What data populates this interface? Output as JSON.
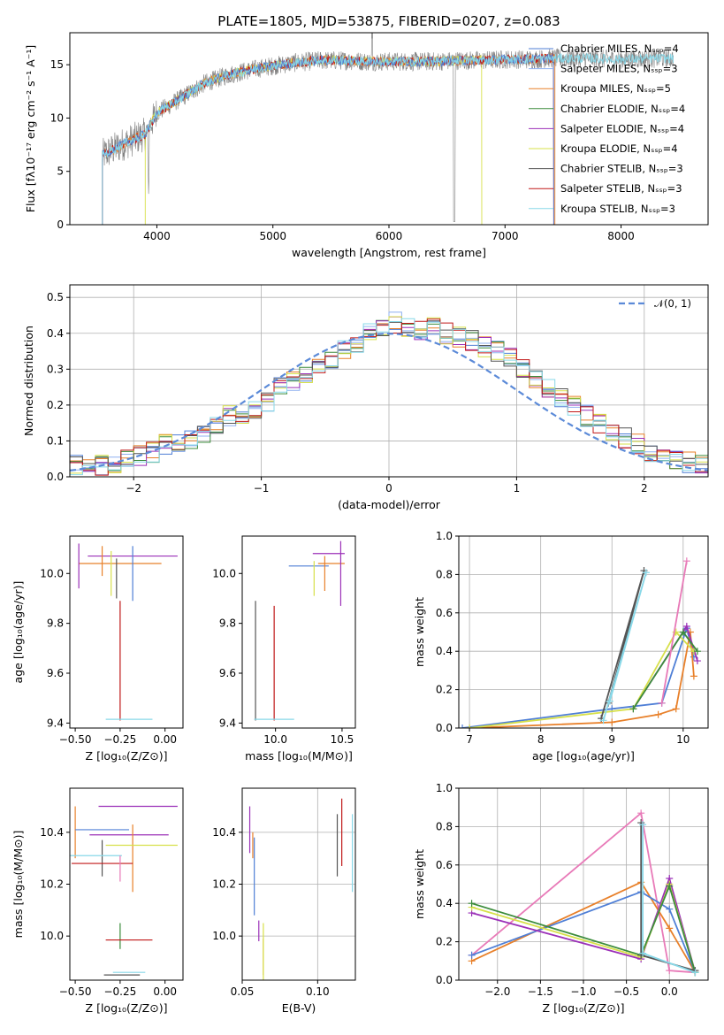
{
  "colors": {
    "chabrier_miles": "#4f7fd6",
    "salpeter_miles": "#8fb0f0",
    "kroupa_miles": "#e8802a",
    "chabrier_elodie": "#3c8c3c",
    "salpeter_elodie": "#9b30b8",
    "kroupa_elodie": "#d7e04a",
    "chabrier_stelib": "#555555",
    "salpeter_stelib": "#c01818",
    "kroupa_stelib": "#88d8e8",
    "data": "#808080",
    "normal": "#5b8ad8",
    "pink": "#e87ab8"
  },
  "chart_data": [
    {
      "id": "spectrum",
      "type": "line",
      "title": "PLATE=1805, MJD=53875, FIBERID=0207, z=0.083",
      "xlabel": "wavelength [Angstrom, rest frame]",
      "ylabel": "Flux [fλ10⁻¹⁷ erg cm⁻² s⁻¹ A⁻¹]",
      "xlim": [
        3250,
        8750
      ],
      "ylim": [
        0,
        18
      ],
      "xticks": [
        4000,
        5000,
        6000,
        7000,
        8000
      ],
      "yticks": [
        0,
        5,
        10,
        15
      ],
      "legend_position": "top-right",
      "legend": [
        "Chabrier MILES, Nₛₛₚ=4",
        "Salpeter MILES, Nₛₛₚ=3",
        "Kroupa MILES, Nₛₛₚ=5",
        "Chabrier ELODIE, Nₛₛₚ=4",
        "Salpeter ELODIE, Nₛₛₚ=4",
        "Kroupa ELODIE, Nₛₛₚ=4",
        "Chabrier STELIB, Nₛₛₚ=3",
        "Salpeter STELIB, Nₛₛₚ=3",
        "Kroupa STELIB, Nₛₛₚ=3"
      ],
      "continuum": {
        "x": [
          3530,
          3700,
          3900,
          4000,
          4200,
          4400,
          4600,
          4800,
          5000,
          5200,
          5400,
          5600,
          5800,
          6000,
          6200,
          6400,
          6600,
          6800,
          7000,
          7200,
          7400,
          7700,
          8000,
          8400
        ],
        "y": [
          6.5,
          7.5,
          8.5,
          10.5,
          11.8,
          13.2,
          14.0,
          14.5,
          14.9,
          15.2,
          15.4,
          15.4,
          15.3,
          15.3,
          15.3,
          15.3,
          15.4,
          15.4,
          15.5,
          15.5,
          15.6,
          15.6,
          15.5,
          15.6
        ]
      }
    },
    {
      "id": "residuals",
      "type": "line",
      "xlabel": "(data-model)/error",
      "ylabel": "Normed distribution",
      "xlim": [
        -2.5,
        2.5
      ],
      "ylim": [
        0,
        0.535
      ],
      "xticks": [
        -2,
        -1,
        0,
        1,
        2
      ],
      "yticks": [
        0.0,
        0.1,
        0.2,
        0.3,
        0.4,
        0.5
      ],
      "legend": [
        "𝒩(0, 1)"
      ],
      "legend_position": "top-right",
      "hist_bins": [
        -2.5,
        -2.4,
        -2.3,
        -2.2,
        -2.1,
        -2.0,
        -1.9,
        -1.8,
        -1.7,
        -1.6,
        -1.5,
        -1.4,
        -1.3,
        -1.2,
        -1.1,
        -1.0,
        -0.9,
        -0.8,
        -0.7,
        -0.6,
        -0.5,
        -0.4,
        -0.3,
        -0.2,
        -0.1,
        0.0,
        0.1,
        0.2,
        0.3,
        0.4,
        0.5,
        0.6,
        0.7,
        0.8,
        0.9,
        1.0,
        1.1,
        1.2,
        1.3,
        1.4,
        1.5,
        1.6,
        1.7,
        1.8,
        1.9,
        2.0,
        2.1,
        2.2,
        2.3,
        2.4
      ],
      "hist_values": [
        0.03,
        0.03,
        0.03,
        0.04,
        0.05,
        0.06,
        0.07,
        0.09,
        0.1,
        0.1,
        0.12,
        0.14,
        0.17,
        0.16,
        0.18,
        0.21,
        0.25,
        0.27,
        0.29,
        0.31,
        0.33,
        0.35,
        0.37,
        0.4,
        0.41,
        0.43,
        0.42,
        0.41,
        0.42,
        0.4,
        0.39,
        0.38,
        0.36,
        0.35,
        0.33,
        0.3,
        0.27,
        0.25,
        0.22,
        0.2,
        0.17,
        0.15,
        0.13,
        0.11,
        0.09,
        0.07,
        0.06,
        0.05,
        0.04,
        0.03
      ]
    },
    {
      "id": "age_vs_Z",
      "type": "scatter",
      "xlabel": "Z [log₁₀(Z/Z⊙)]",
      "ylabel": "age  [log₁₀(age/yr)]",
      "xlim": [
        -0.53,
        0.1
      ],
      "ylim": [
        9.38,
        10.15
      ],
      "xticks": [
        -0.5,
        -0.25,
        0.0
      ],
      "xticklabels": [
        "−0.50",
        "−0.25",
        "0.00"
      ],
      "yticks": [
        9.4,
        9.6,
        9.8,
        10.0
      ],
      "errorbars": [
        {
          "x": -0.18,
          "y": 10.07,
          "xerr": 0.25,
          "yerr": 0.0
        },
        {
          "x": -0.25,
          "y": 10.04,
          "xerr": 0.23,
          "yerr": 0.0
        },
        {
          "x": -0.18,
          "y": 10.0,
          "xerr": 0.0,
          "yerr": 0.11
        },
        {
          "x": -0.48,
          "y": 10.03,
          "xerr": 0.0,
          "yerr": 0.09
        },
        {
          "x": -0.35,
          "y": 10.05,
          "xerr": 0.0,
          "yerr": 0.06
        },
        {
          "x": -0.3,
          "y": 10.0,
          "xerr": 0.0,
          "yerr": 0.09
        },
        {
          "x": -0.27,
          "y": 9.98,
          "xerr": 0.0,
          "yerr": 0.08
        },
        {
          "x": -0.25,
          "y": 9.65,
          "xerr": 0.0,
          "yerr": 0.24
        },
        {
          "x": -0.2,
          "y": 9.415,
          "xerr": 0.13,
          "yerr": 0.0
        }
      ]
    },
    {
      "id": "age_vs_mass",
      "type": "scatter",
      "xlabel": "mass [log₁₀(M/M⊙)]",
      "xlim": [
        9.75,
        10.6
      ],
      "ylim": [
        9.38,
        10.15
      ],
      "xticks": [
        10.0,
        10.5
      ],
      "xticklabels": [
        "10.0",
        "10.5"
      ],
      "yticks": [
        9.4,
        9.6,
        9.8,
        10.0
      ],
      "errorbars": [
        {
          "x": 10.4,
          "y": 10.08,
          "xerr": 0.12,
          "yerr": 0.0
        },
        {
          "x": 10.42,
          "y": 10.04,
          "xerr": 0.1,
          "yerr": 0.0
        },
        {
          "x": 10.25,
          "y": 10.03,
          "xerr": 0.15,
          "yerr": 0.0
        },
        {
          "x": 10.49,
          "y": 10.0,
          "xerr": 0.0,
          "yerr": 0.13
        },
        {
          "x": 10.37,
          "y": 10.0,
          "xerr": 0.0,
          "yerr": 0.07
        },
        {
          "x": 10.29,
          "y": 9.98,
          "xerr": 0.0,
          "yerr": 0.07
        },
        {
          "x": 9.85,
          "y": 9.65,
          "xerr": 0.0,
          "yerr": 0.24
        },
        {
          "x": 9.99,
          "y": 9.64,
          "xerr": 0.0,
          "yerr": 0.23
        },
        {
          "x": 9.99,
          "y": 9.415,
          "xerr": 0.15,
          "yerr": 0.0
        }
      ]
    },
    {
      "id": "weight_vs_age",
      "type": "line",
      "xlabel": "age  [log₁₀(age/yr)]",
      "ylabel": "mass weight",
      "xlim": [
        6.85,
        10.35
      ],
      "ylim": [
        0,
        1
      ],
      "xticks": [
        7,
        8,
        9,
        10
      ],
      "yticks": [
        0.0,
        0.2,
        0.4,
        0.6,
        0.8,
        1.0
      ],
      "series": [
        {
          "color": "chabrier_miles",
          "x": [
            6.9,
            9.0,
            9.7,
            10.05,
            10.15
          ],
          "y": [
            0.0,
            0.1,
            0.13,
            0.52,
            0.37
          ]
        },
        {
          "color": "kroupa_miles",
          "x": [
            7.0,
            9.0,
            9.65,
            9.9,
            10.1,
            10.15
          ],
          "y": [
            0.0,
            0.03,
            0.07,
            0.1,
            0.5,
            0.27
          ]
        },
        {
          "color": "salpeter_elodie",
          "x": [
            9.3,
            10.05,
            10.2
          ],
          "y": [
            0.1,
            0.53,
            0.35
          ]
        },
        {
          "color": "kroupa_elodie",
          "x": [
            7.0,
            9.3,
            9.9,
            10.15
          ],
          "y": [
            0.0,
            0.1,
            0.5,
            0.4
          ]
        },
        {
          "color": "chabrier_elodie",
          "x": [
            9.3,
            10.0,
            10.2
          ],
          "y": [
            0.1,
            0.5,
            0.4
          ]
        },
        {
          "color": "pink",
          "x": [
            9.7,
            10.05
          ],
          "y": [
            0.13,
            0.87
          ]
        },
        {
          "color": "chabrier_stelib",
          "x": [
            8.85,
            9.45,
            8.95
          ],
          "y": [
            0.05,
            0.82,
            0.13
          ]
        },
        {
          "color": "kroupa_stelib",
          "x": [
            8.88,
            9.48,
            8.97
          ],
          "y": [
            0.04,
            0.81,
            0.14
          ]
        }
      ]
    },
    {
      "id": "mass_vs_Z",
      "type": "scatter",
      "xlabel": "Z [log₁₀(Z/Z⊙)]",
      "ylabel": "mass [log₁₀(M/M⊙)]",
      "xlim": [
        -0.53,
        0.1
      ],
      "ylim": [
        9.83,
        10.57
      ],
      "xticks": [
        -0.5,
        -0.25,
        0.0
      ],
      "xticklabels": [
        "−0.50",
        "−0.25",
        "0.00"
      ],
      "yticks": [
        10.0,
        10.2,
        10.4
      ],
      "errorbars": [
        {
          "x": -0.15,
          "y": 10.5,
          "xerr": 0.22,
          "yerr": 0.0
        },
        {
          "x": -0.5,
          "y": 10.4,
          "xerr": 0.0,
          "yerr": 0.1
        },
        {
          "x": -0.35,
          "y": 10.41,
          "xerr": 0.15,
          "yerr": 0.0
        },
        {
          "x": -0.2,
          "y": 10.39,
          "xerr": 0.22,
          "yerr": 0.0
        },
        {
          "x": -0.18,
          "y": 10.3,
          "xerr": 0.0,
          "yerr": 0.13
        },
        {
          "x": -0.13,
          "y": 10.35,
          "xerr": 0.2,
          "yerr": 0.0
        },
        {
          "x": -0.35,
          "y": 10.3,
          "xerr": 0.0,
          "yerr": 0.07
        },
        {
          "x": -0.35,
          "y": 10.28,
          "xerr": 0.17,
          "yerr": 0.0
        },
        {
          "x": -0.39,
          "y": 10.31,
          "xerr": 0.15,
          "yerr": 0.0
        },
        {
          "x": -0.25,
          "y": 10.26,
          "xerr": 0.0,
          "yerr": 0.05
        },
        {
          "x": -0.25,
          "y": 10.0,
          "xerr": 0.0,
          "yerr": 0.05
        },
        {
          "x": -0.2,
          "y": 9.985,
          "xerr": 0.13,
          "yerr": 0.0
        },
        {
          "x": -0.2,
          "y": 9.86,
          "xerr": 0.09,
          "yerr": 0.0
        },
        {
          "x": -0.24,
          "y": 9.85,
          "xerr": 0.1,
          "yerr": 0.0
        }
      ]
    },
    {
      "id": "mass_vs_ebv",
      "type": "scatter",
      "xlabel": "E(B-V)",
      "xlim": [
        0.05,
        0.125
      ],
      "ylim": [
        9.83,
        10.57
      ],
      "xticks": [
        0.05,
        0.1
      ],
      "xticklabels": [
        "0.05",
        "0.10"
      ],
      "yticks": [
        10.0,
        10.2,
        10.4
      ],
      "errorbars": [
        {
          "x": 0.055,
          "y": 10.41,
          "xerr": 0.0,
          "yerr": 0.09
        },
        {
          "x": 0.057,
          "y": 10.35,
          "xerr": 0.0,
          "yerr": 0.05
        },
        {
          "x": 0.058,
          "y": 10.23,
          "xerr": 0.0,
          "yerr": 0.15
        },
        {
          "x": 0.061,
          "y": 10.02,
          "xerr": 0.0,
          "yerr": 0.04
        },
        {
          "x": 0.064,
          "y": 9.92,
          "xerr": 0.0,
          "yerr": 0.07
        },
        {
          "x": 0.064,
          "y": 9.93,
          "xerr": 0.0,
          "yerr": 0.12
        },
        {
          "x": 0.113,
          "y": 10.35,
          "xerr": 0.0,
          "yerr": 0.12
        },
        {
          "x": 0.116,
          "y": 10.4,
          "xerr": 0.0,
          "yerr": 0.13
        },
        {
          "x": 0.123,
          "y": 10.32,
          "xerr": 0.0,
          "yerr": 0.15
        }
      ]
    },
    {
      "id": "weight_vs_Z",
      "type": "line",
      "xlabel": "Z [log₁₀(Z/Z⊙)]",
      "ylabel": "mass weight",
      "xlim": [
        -2.45,
        0.45
      ],
      "ylim": [
        0,
        1
      ],
      "xticks": [
        -2.0,
        -1.5,
        -1.0,
        -0.5,
        0.0
      ],
      "xticklabels": [
        "−2.0",
        "−1.5",
        "−1.0",
        "−0.5",
        "0.0"
      ],
      "yticks": [
        0.0,
        0.2,
        0.4,
        0.6,
        0.8,
        1.0
      ],
      "series": [
        {
          "color": "pink",
          "x": [
            -2.3,
            -0.33,
            0.0,
            0.3
          ],
          "y": [
            0.13,
            0.87,
            0.05,
            0.04
          ]
        },
        {
          "color": "kroupa_miles",
          "x": [
            -2.3,
            -0.33,
            0.0,
            0.3
          ],
          "y": [
            0.1,
            0.51,
            0.27,
            0.04
          ]
        },
        {
          "color": "chabrier_miles",
          "x": [
            -2.3,
            -0.33,
            0.0,
            0.3
          ],
          "y": [
            0.13,
            0.46,
            0.37,
            0.04
          ]
        },
        {
          "color": "salpeter_elodie",
          "x": [
            -2.3,
            -0.33,
            0.0,
            0.3
          ],
          "y": [
            0.35,
            0.11,
            0.53,
            0.04
          ]
        },
        {
          "color": "kroupa_elodie",
          "x": [
            -2.3,
            -0.33,
            0.0,
            0.3
          ],
          "y": [
            0.38,
            0.12,
            0.5,
            0.04
          ]
        },
        {
          "color": "chabrier_elodie",
          "x": [
            -2.3,
            -0.33,
            0.0,
            0.3
          ],
          "y": [
            0.4,
            0.13,
            0.49,
            0.04
          ]
        },
        {
          "color": "chabrier_stelib",
          "x": [
            -0.33,
            -0.33,
            0.3
          ],
          "y": [
            0.82,
            0.13,
            0.05
          ]
        },
        {
          "color": "kroupa_stelib",
          "x": [
            -0.31,
            -0.31,
            0.3
          ],
          "y": [
            0.81,
            0.14,
            0.04
          ]
        }
      ]
    }
  ]
}
